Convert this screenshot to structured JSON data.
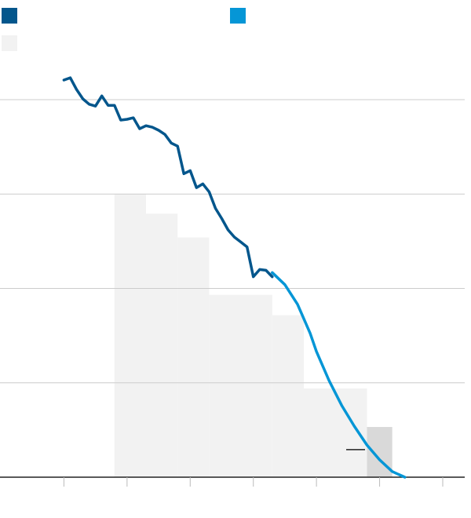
{
  "legend": {
    "historical_label": "",
    "projected_label": "",
    "shaded_label": ""
  },
  "colors": {
    "historical": "#03568c",
    "projected": "#0596d6",
    "shaded_band": "#f2f2f2",
    "highlight_band": "#d9d9d9",
    "gridline": "#cccccc",
    "axis": "#222222",
    "background": "#ffffff"
  },
  "chart_data": {
    "type": "line",
    "title": "",
    "xlabel": "",
    "ylabel": "",
    "xlim": [
      0,
      7
    ],
    "ylim": [
      0,
      100
    ],
    "x_ticks": [
      1,
      2,
      3,
      4,
      5,
      6,
      7
    ],
    "y_gridlines": [
      25,
      50,
      75,
      100
    ],
    "grid": true,
    "legend_placement": "top",
    "series": [
      {
        "key": "historical",
        "points": [
          [
            1.0,
            105.2
          ],
          [
            1.1,
            105.8
          ],
          [
            1.2,
            102.7
          ],
          [
            1.3,
            100.2
          ],
          [
            1.4,
            98.8
          ],
          [
            1.5,
            98.3
          ],
          [
            1.6,
            101.0
          ],
          [
            1.7,
            98.5
          ],
          [
            1.8,
            98.5
          ],
          [
            1.9,
            94.6
          ],
          [
            2.0,
            94.8
          ],
          [
            2.1,
            95.2
          ],
          [
            2.2,
            92.3
          ],
          [
            2.3,
            93.1
          ],
          [
            2.4,
            92.7
          ],
          [
            2.5,
            91.9
          ],
          [
            2.6,
            90.8
          ],
          [
            2.7,
            88.5
          ],
          [
            2.8,
            87.7
          ],
          [
            2.9,
            80.4
          ],
          [
            3.0,
            81.2
          ],
          [
            3.1,
            76.7
          ],
          [
            3.2,
            77.7
          ],
          [
            3.3,
            75.6
          ],
          [
            3.4,
            71.2
          ],
          [
            3.5,
            68.5
          ],
          [
            3.6,
            65.5
          ],
          [
            3.7,
            63.6
          ],
          [
            3.8,
            62.3
          ],
          [
            3.9,
            61.0
          ],
          [
            4.0,
            53.1
          ],
          [
            4.1,
            55.0
          ],
          [
            4.2,
            54.8
          ],
          [
            4.3,
            53.1
          ]
        ]
      },
      {
        "key": "projected",
        "points": [
          [
            4.3,
            54.2
          ],
          [
            4.5,
            51.0
          ],
          [
            4.7,
            45.8
          ],
          [
            4.9,
            38.1
          ],
          [
            5.0,
            33.3
          ],
          [
            5.2,
            25.6
          ],
          [
            5.4,
            19.0
          ],
          [
            5.6,
            13.5
          ],
          [
            5.8,
            8.5
          ],
          [
            6.0,
            4.6
          ],
          [
            6.2,
            1.5
          ],
          [
            6.4,
            0
          ]
        ]
      }
    ],
    "shaded_bands": [
      {
        "x0": 1.8,
        "x1": 2.3,
        "y": 75.0,
        "highlight": false
      },
      {
        "x0": 2.3,
        "x1": 2.8,
        "y": 69.8,
        "highlight": false
      },
      {
        "x0": 2.8,
        "x1": 3.3,
        "y": 63.5,
        "highlight": false
      },
      {
        "x0": 3.3,
        "x1": 4.3,
        "y": 48.3,
        "highlight": false
      },
      {
        "x0": 4.3,
        "x1": 4.8,
        "y": 42.9,
        "highlight": false
      },
      {
        "x0": 4.8,
        "x1": 5.8,
        "y": 23.5,
        "highlight": false
      },
      {
        "x0": 5.8,
        "x1": 6.2,
        "y": 13.3,
        "highlight": true
      }
    ],
    "annotation_tick": {
      "x": 5.62,
      "y": 7.3
    }
  }
}
